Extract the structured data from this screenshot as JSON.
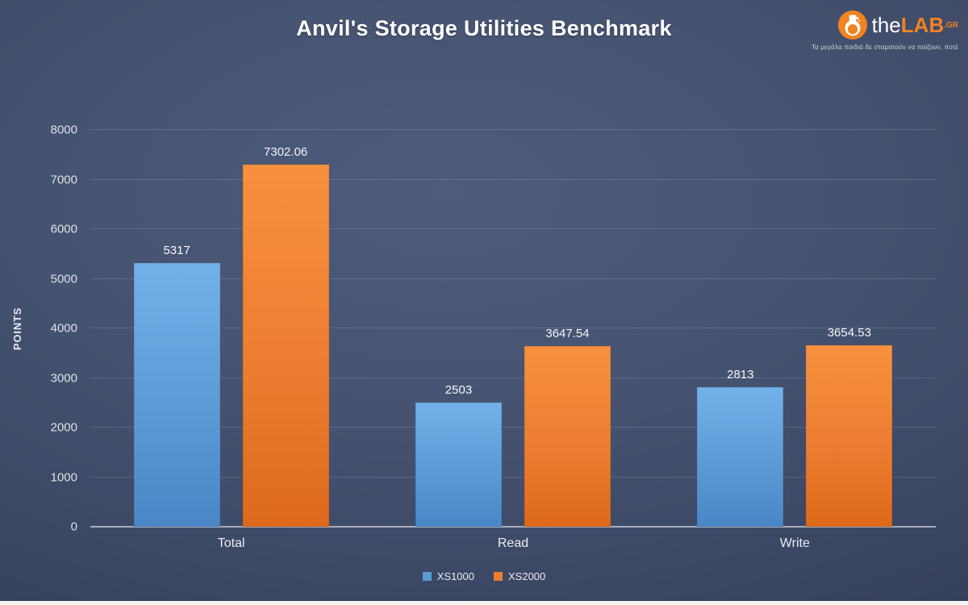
{
  "title": "Anvil's Storage Utilities Benchmark",
  "logo": {
    "brand_the": "the",
    "brand_lab": "LAB",
    "brand_tld": ".GR",
    "tagline": "Τα μεγάλα παιδιά δε σταματούν να παίζουν, ποτέ"
  },
  "chart_data": {
    "type": "bar",
    "title": "Anvil's Storage Utilities Benchmark",
    "categories": [
      "Total",
      "Read",
      "Write"
    ],
    "series": [
      {
        "name": "XS1000",
        "color": "#5b9bd5",
        "color_top": "#72b1ea",
        "color_bottom": "#4a86c6",
        "values": [
          5317,
          2503,
          2813
        ],
        "labels": [
          "5317",
          "2503",
          "2813"
        ]
      },
      {
        "name": "XS2000",
        "color": "#ed7d31",
        "color_top": "#f6913e",
        "color_bottom": "#dd6a1a",
        "values": [
          7302.06,
          3647.54,
          3654.53
        ],
        "labels": [
          "7302.06",
          "3647.54",
          "3654.53"
        ]
      }
    ],
    "xlabel": "",
    "ylabel": "POINTS",
    "ylim": [
      0,
      8000
    ],
    "yticks": [
      0,
      1000,
      2000,
      3000,
      4000,
      5000,
      6000,
      7000,
      8000
    ],
    "grid": true,
    "legend_position": "bottom"
  }
}
